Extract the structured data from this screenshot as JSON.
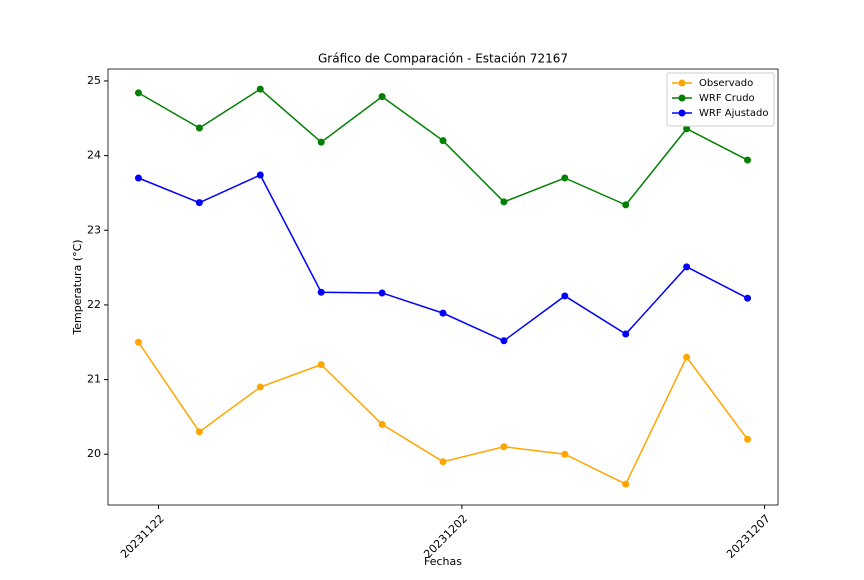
{
  "chart_data": {
    "type": "line",
    "title": "Gráfico de Comparación - Estación 72167",
    "xlabel": "Fechas",
    "ylabel": "Temperatura (°C)",
    "x": [
      0,
      1,
      2,
      3,
      4,
      5,
      6,
      7,
      8,
      9,
      10
    ],
    "xlim": [
      -0.5,
      10.5
    ],
    "xticks": [
      {
        "value": 0.33,
        "label": "20231122"
      },
      {
        "value": 5.31,
        "label": "20231202"
      },
      {
        "value": 10.28,
        "label": "20231207"
      }
    ],
    "ylim": [
      19.32,
      25.16
    ],
    "yticks": [
      20,
      21,
      22,
      23,
      24,
      25
    ],
    "legend": "upper right",
    "series": [
      {
        "name": "Observado",
        "color": "orange",
        "values": [
          21.5,
          20.3,
          20.9,
          21.2,
          20.4,
          19.9,
          20.1,
          20.0,
          19.6,
          21.3,
          20.2
        ]
      },
      {
        "name": "WRF Crudo",
        "color": "green",
        "values": [
          24.84,
          24.37,
          24.89,
          24.18,
          24.79,
          24.2,
          23.38,
          23.7,
          23.34,
          24.36,
          23.94
        ]
      },
      {
        "name": "WRF Ajustado",
        "color": "blue",
        "values": [
          23.7,
          23.37,
          23.74,
          22.17,
          22.16,
          21.89,
          21.52,
          22.12,
          21.61,
          22.51,
          22.09
        ]
      }
    ]
  }
}
